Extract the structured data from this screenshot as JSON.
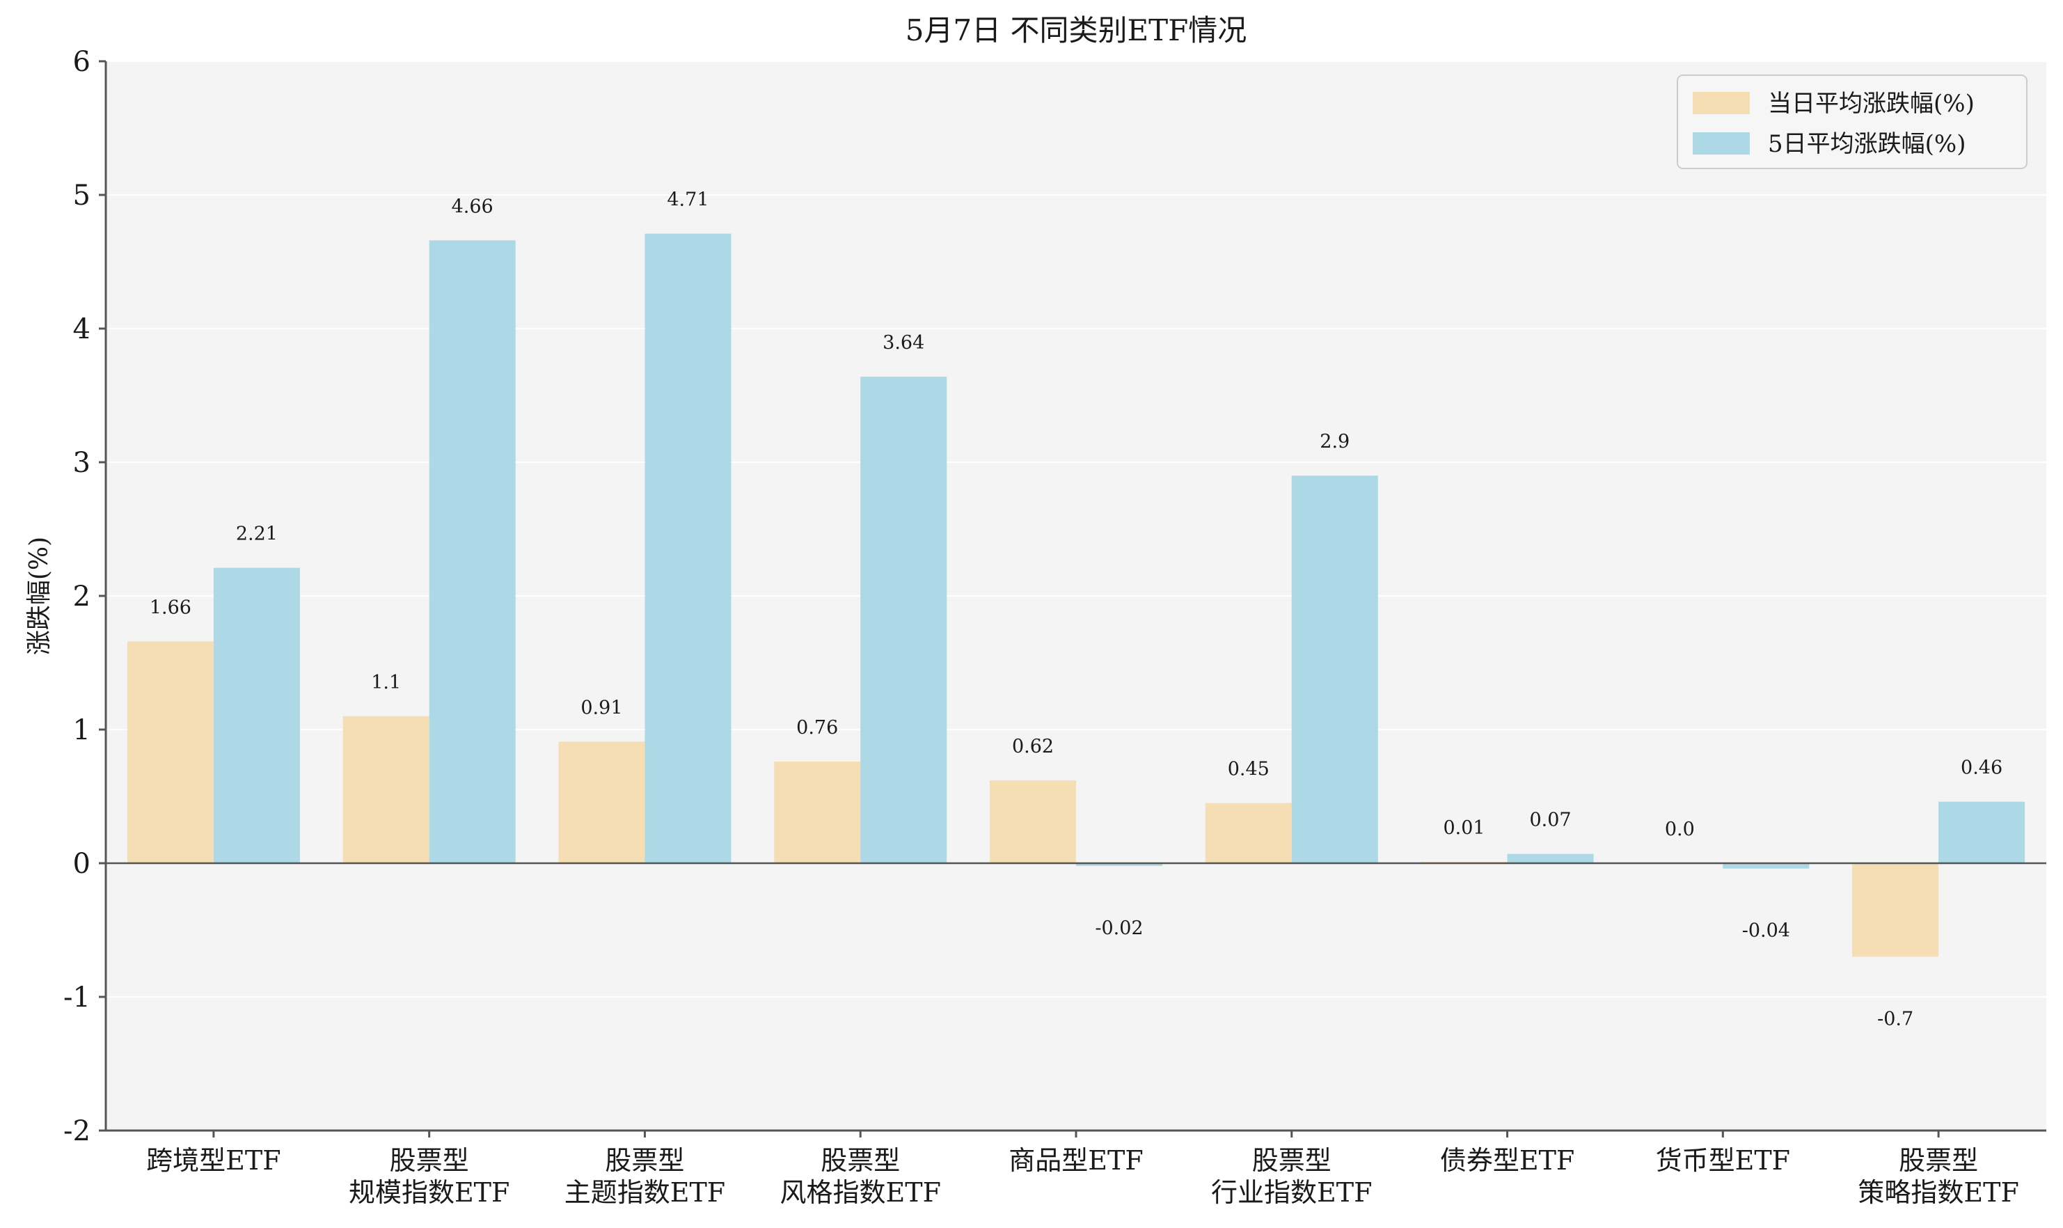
{
  "chart_data": {
    "type": "bar",
    "title": "5月7日 不同类别ETF情况",
    "xlabel": "",
    "ylabel": "涨跌幅(%)",
    "ylim": [
      -2,
      6
    ],
    "yticks": [
      -2,
      -1,
      0,
      1,
      2,
      3,
      4,
      5,
      6
    ],
    "ytick_labels": [
      "-2",
      "-1",
      "0",
      "1",
      "2",
      "3",
      "4",
      "5",
      "6"
    ],
    "grid": true,
    "legend_position": "top-right",
    "categories": [
      [
        "跨境型ETF"
      ],
      [
        "股票型",
        "规模指数ETF"
      ],
      [
        "股票型",
        "主题指数ETF"
      ],
      [
        "股票型",
        "风格指数ETF"
      ],
      [
        "商品型ETF"
      ],
      [
        "股票型",
        "行业指数ETF"
      ],
      [
        "债券型ETF"
      ],
      [
        "货币型ETF"
      ],
      [
        "股票型",
        "策略指数ETF"
      ]
    ],
    "series": [
      {
        "name": "当日平均涨跌幅(%)",
        "color": "#f5deb3",
        "values": [
          1.66,
          1.1,
          0.91,
          0.76,
          0.62,
          0.45,
          0.01,
          0.0,
          -0.7
        ],
        "labels": [
          "1.66",
          "1.1",
          "0.91",
          "0.76",
          "0.62",
          "0.45",
          "0.01",
          "0.0",
          "-0.7"
        ]
      },
      {
        "name": "5日平均涨跌幅(%)",
        "color": "#add8e6",
        "values": [
          2.21,
          4.66,
          4.71,
          3.64,
          -0.02,
          2.9,
          0.07,
          -0.04,
          0.46
        ],
        "labels": [
          "2.21",
          "4.66",
          "4.71",
          "3.64",
          "-0.02",
          "2.9",
          "0.07",
          "-0.04",
          "0.46"
        ]
      }
    ],
    "colors": {
      "plot_background": "#f4f4f4",
      "grid": "#ffffff",
      "axis": "#555555",
      "zero_line": "#555555"
    }
  }
}
